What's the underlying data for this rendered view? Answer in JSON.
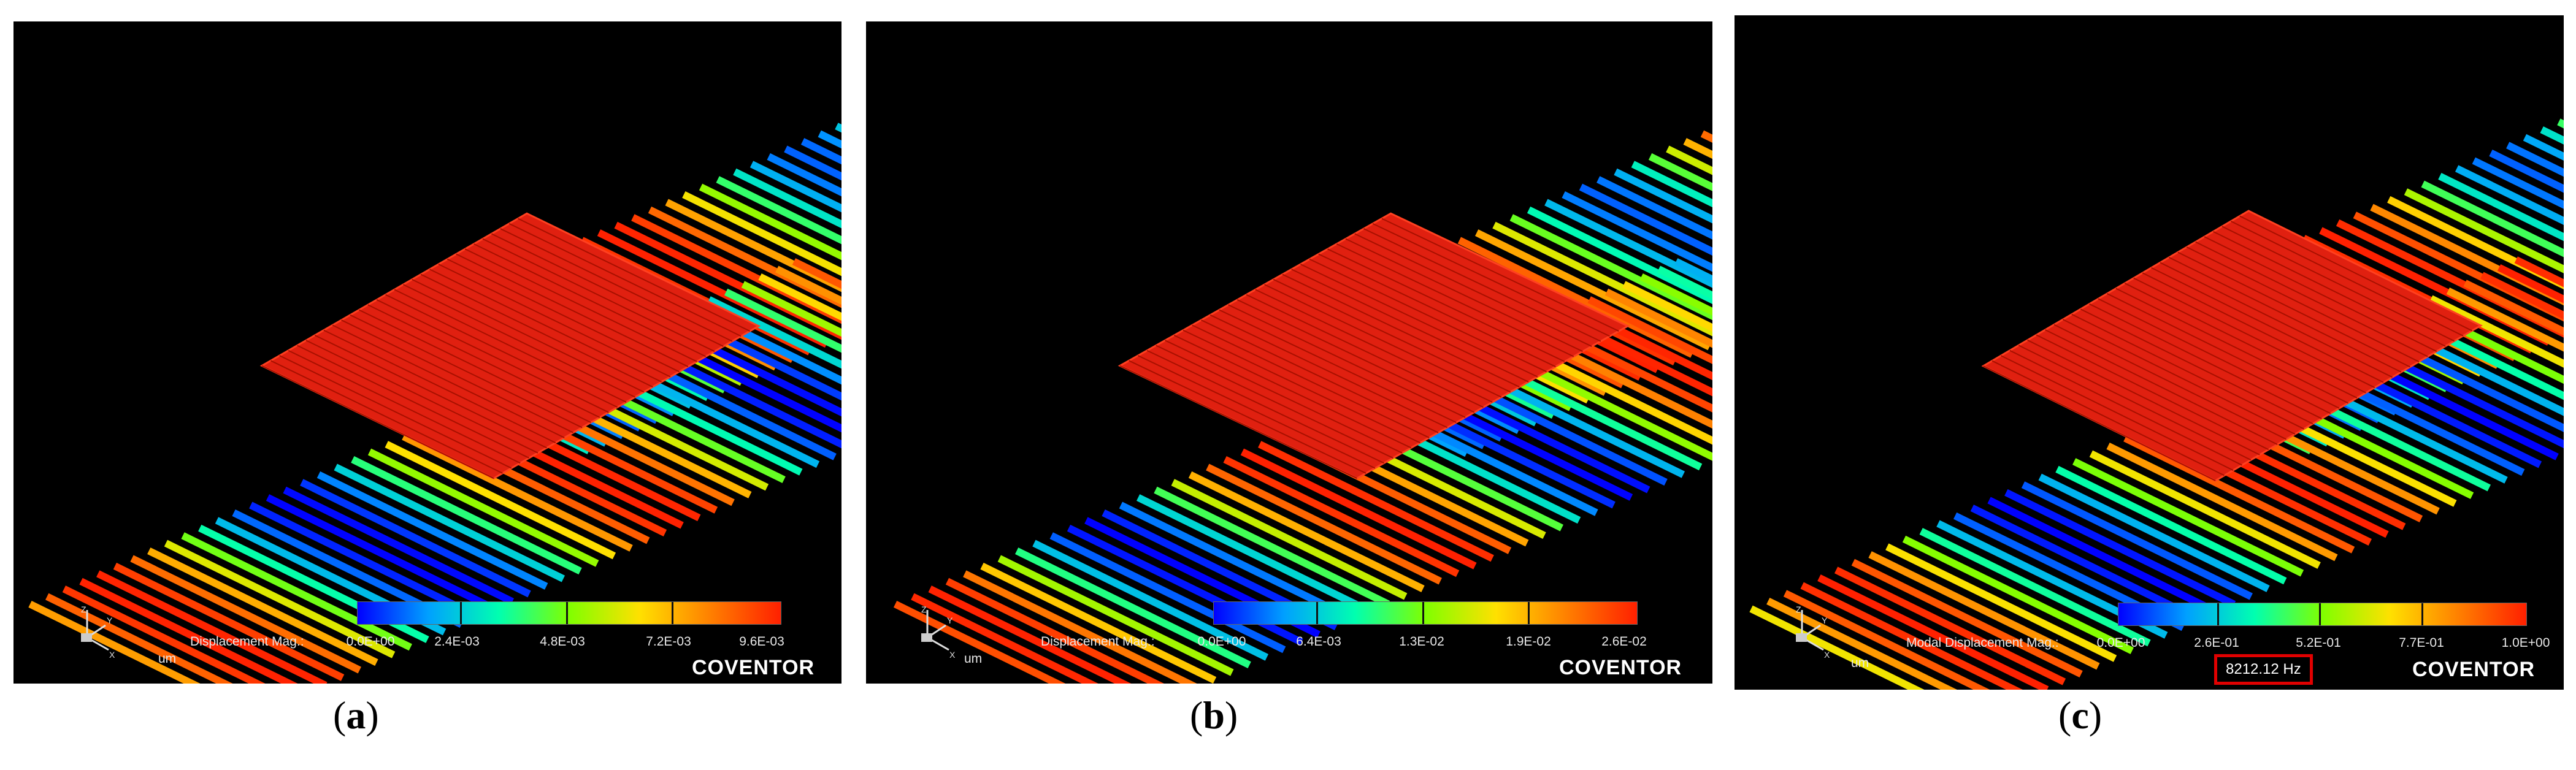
{
  "panels": [
    {
      "id": "a",
      "caption_letter": "a",
      "legend_label": "Displacement Mag.:",
      "ticks": [
        "0.0E+00",
        "2.4E-03",
        "4.8E-03",
        "7.2E-03",
        "9.6E-03"
      ],
      "unit": "um",
      "brand": "COVENTOR"
    },
    {
      "id": "b",
      "caption_letter": "b",
      "legend_label": "Displacement Mag.:",
      "ticks": [
        "0.0E+00",
        "6.4E-03",
        "1.3E-02",
        "1.9E-02",
        "2.6E-02"
      ],
      "unit": "um",
      "brand": "COVENTOR"
    },
    {
      "id": "c",
      "caption_letter": "c",
      "legend_label": "Modal Displacement Mag.:",
      "ticks": [
        "0.0E+00",
        "2.6E-01",
        "5.2E-01",
        "7.7E-01",
        "1.0E+00"
      ],
      "unit": "um",
      "brand": "COVENTOR",
      "frequency": "8212.12 Hz"
    }
  ],
  "colors": {
    "colormap": [
      "#0000ff",
      "#00a0ff",
      "#00ffb0",
      "#80ff00",
      "#ffe000",
      "#ff8000",
      "#ff2000"
    ],
    "highlight_box": "#e00000",
    "background": "#000000"
  },
  "axis_triad_labels": [
    "Z",
    "Y",
    "X"
  ]
}
